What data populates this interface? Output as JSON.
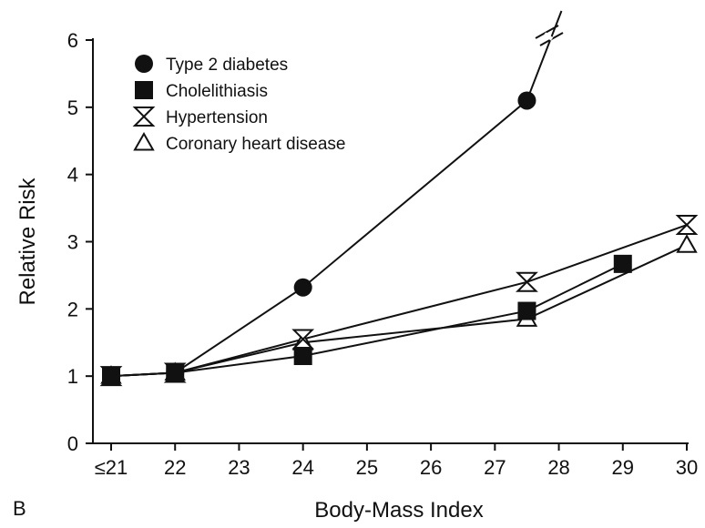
{
  "chart_data": {
    "type": "line",
    "panel_label": "B",
    "title": "",
    "xlabel": "Body-Mass Index",
    "ylabel": "Relative Risk",
    "x_ticks": [
      "≤21",
      "22",
      "23",
      "24",
      "25",
      "26",
      "27",
      "28",
      "29",
      "30"
    ],
    "y_ticks": [
      "0",
      "1",
      "2",
      "3",
      "4",
      "5",
      "6"
    ],
    "xlim": [
      21,
      30
    ],
    "ylim": [
      0,
      6
    ],
    "grid": false,
    "legend_position": "top-left",
    "axis_break_note": "Type 2 diabetes line continues beyond the top of the axis (break marks)",
    "series": [
      {
        "name": "Type 2 diabetes",
        "marker": "circle",
        "x": [
          21,
          22,
          24,
          27.5
        ],
        "y": [
          1.0,
          1.05,
          2.32,
          5.1
        ],
        "continues_off_scale": true
      },
      {
        "name": "Cholelithiasis",
        "marker": "square",
        "x": [
          21,
          22,
          24,
          27.5,
          29
        ],
        "y": [
          1.0,
          1.05,
          1.3,
          1.97,
          2.67
        ]
      },
      {
        "name": "Hypertension",
        "marker": "hourglass",
        "x": [
          21,
          22,
          24,
          27.5,
          30
        ],
        "y": [
          1.0,
          1.05,
          1.55,
          2.4,
          3.25
        ]
      },
      {
        "name": "Coronary heart disease",
        "marker": "triangle",
        "x": [
          21,
          22,
          24,
          27.5,
          30
        ],
        "y": [
          1.0,
          1.05,
          1.5,
          1.85,
          2.95
        ]
      }
    ]
  }
}
